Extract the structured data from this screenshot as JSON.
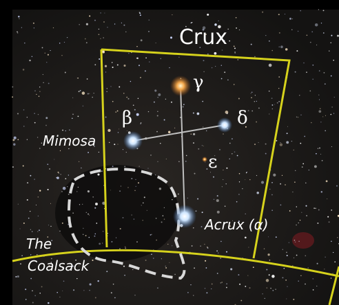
{
  "title": "Crux",
  "stars": [
    {
      "symbol": "γ"
    },
    {
      "symbol": "β",
      "name": "Mimosa"
    },
    {
      "symbol": "δ"
    },
    {
      "symbol": "ε"
    },
    {
      "name": "Acrux (α)"
    }
  ],
  "regions": [
    {
      "label": [
        "The",
        "Coalsack"
      ]
    }
  ]
}
